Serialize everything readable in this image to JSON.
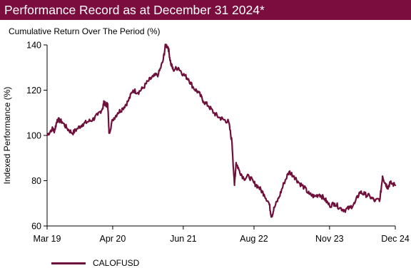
{
  "header": {
    "title": "Performance Record as at December 31 2024*"
  },
  "colors": {
    "header_bg": "#7a0c3e",
    "series": "#6f0f3b",
    "axis": "#000000"
  },
  "chart_data": {
    "type": "line",
    "title": "Cumulative Return Over The Period (%)",
    "ylabel": "Indexed Performance (%)",
    "xlabel": "",
    "ylim": [
      60,
      140
    ],
    "xlim": [
      "2019-03-31",
      "2024-12-31"
    ],
    "yticks": [
      60,
      80,
      100,
      120,
      140
    ],
    "xtick_labels": [
      {
        "date": "2019-03-31",
        "label": "Mar 19"
      },
      {
        "date": "2020-04-30",
        "label": "Apr 20"
      },
      {
        "date": "2021-06-30",
        "label": "Jun 21"
      },
      {
        "date": "2022-08-31",
        "label": "Aug 22"
      },
      {
        "date": "2023-11-30",
        "label": "Nov 23"
      },
      {
        "date": "2024-12-31",
        "label": "Dec 24"
      }
    ],
    "grid": false,
    "legend": "bottom-left",
    "series": [
      {
        "name": "CALOFUSD",
        "points": [
          [
            "2019-03-31",
            100
          ],
          [
            "2019-04-30",
            103
          ],
          [
            "2019-05-15",
            102
          ],
          [
            "2019-05-31",
            107
          ],
          [
            "2019-06-30",
            106
          ],
          [
            "2019-07-31",
            103
          ],
          [
            "2019-08-31",
            101
          ],
          [
            "2019-09-30",
            103
          ],
          [
            "2019-10-31",
            105
          ],
          [
            "2019-11-30",
            106
          ],
          [
            "2019-12-31",
            107
          ],
          [
            "2020-01-31",
            109
          ],
          [
            "2020-02-29",
            112
          ],
          [
            "2020-03-10",
            115
          ],
          [
            "2020-03-20",
            113
          ],
          [
            "2020-03-31",
            114
          ],
          [
            "2020-04-08",
            101
          ],
          [
            "2020-04-30",
            107
          ],
          [
            "2020-05-31",
            110
          ],
          [
            "2020-06-30",
            112
          ],
          [
            "2020-07-31",
            115
          ],
          [
            "2020-08-31",
            120
          ],
          [
            "2020-09-30",
            119
          ],
          [
            "2020-10-31",
            121
          ],
          [
            "2020-11-30",
            124
          ],
          [
            "2020-12-31",
            126
          ],
          [
            "2021-01-31",
            127
          ],
          [
            "2021-02-28",
            133
          ],
          [
            "2021-03-15",
            140
          ],
          [
            "2021-03-31",
            139
          ],
          [
            "2021-04-15",
            132
          ],
          [
            "2021-04-30",
            129
          ],
          [
            "2021-05-31",
            130
          ],
          [
            "2021-06-30",
            127
          ],
          [
            "2021-07-31",
            125
          ],
          [
            "2021-08-31",
            121
          ],
          [
            "2021-09-30",
            119
          ],
          [
            "2021-10-31",
            115
          ],
          [
            "2021-11-30",
            113
          ],
          [
            "2021-12-31",
            110
          ],
          [
            "2022-01-31",
            108
          ],
          [
            "2022-02-28",
            107
          ],
          [
            "2022-03-31",
            106
          ],
          [
            "2022-04-20",
            97
          ],
          [
            "2022-05-05",
            78
          ],
          [
            "2022-05-15",
            88
          ],
          [
            "2022-05-31",
            85
          ],
          [
            "2022-06-30",
            81
          ],
          [
            "2022-07-31",
            82
          ],
          [
            "2022-08-31",
            79
          ],
          [
            "2022-09-30",
            77
          ],
          [
            "2022-10-31",
            74
          ],
          [
            "2022-11-30",
            70
          ],
          [
            "2022-12-15",
            64
          ],
          [
            "2022-12-31",
            68
          ],
          [
            "2023-01-31",
            73
          ],
          [
            "2023-02-28",
            79
          ],
          [
            "2023-03-31",
            84
          ],
          [
            "2023-04-30",
            82
          ],
          [
            "2023-05-31",
            79
          ],
          [
            "2023-06-30",
            77
          ],
          [
            "2023-07-31",
            74
          ],
          [
            "2023-08-31",
            73
          ],
          [
            "2023-09-30",
            74
          ],
          [
            "2023-10-31",
            72
          ],
          [
            "2023-11-30",
            69
          ],
          [
            "2023-12-31",
            70
          ],
          [
            "2024-01-31",
            68
          ],
          [
            "2024-02-29",
            67
          ],
          [
            "2024-03-31",
            68
          ],
          [
            "2024-04-30",
            70
          ],
          [
            "2024-05-31",
            75
          ],
          [
            "2024-06-30",
            74
          ],
          [
            "2024-07-31",
            73
          ],
          [
            "2024-08-31",
            71
          ],
          [
            "2024-09-30",
            72
          ],
          [
            "2024-10-15",
            82
          ],
          [
            "2024-10-31",
            79
          ],
          [
            "2024-11-15",
            77
          ],
          [
            "2024-11-30",
            79
          ],
          [
            "2024-12-31",
            78
          ]
        ]
      }
    ]
  }
}
